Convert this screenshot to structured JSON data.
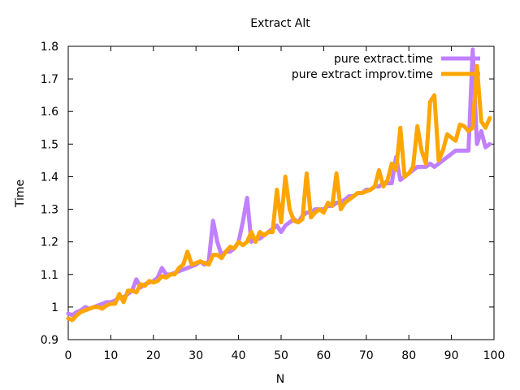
{
  "chart_data": {
    "type": "line",
    "title": "Extract Alt",
    "xlabel": "N",
    "ylabel": "Time",
    "xlim": [
      0,
      100
    ],
    "ylim": [
      0.9,
      1.8
    ],
    "xticks": [
      "0",
      "10",
      "20",
      "30",
      "40",
      "50",
      "60",
      "70",
      "80",
      "90",
      "100"
    ],
    "yticks": [
      "0.9",
      "1",
      "1.1",
      "1.2",
      "1.3",
      "1.4",
      "1.5",
      "1.6",
      "1.7",
      "1.8"
    ],
    "grid": false,
    "legend_position": "top-right",
    "series": [
      {
        "name": "pure extract.time",
        "color": "#c080ff",
        "x": [
          0,
          1,
          2,
          3,
          4,
          5,
          6,
          7,
          8,
          9,
          10,
          11,
          12,
          13,
          14,
          15,
          16,
          17,
          18,
          19,
          20,
          21,
          22,
          23,
          24,
          25,
          26,
          27,
          28,
          29,
          30,
          31,
          32,
          33,
          34,
          35,
          36,
          37,
          38,
          39,
          40,
          41,
          42,
          43,
          44,
          45,
          46,
          47,
          48,
          49,
          50,
          51,
          52,
          53,
          54,
          55,
          56,
          57,
          58,
          59,
          60,
          61,
          62,
          63,
          64,
          65,
          66,
          67,
          68,
          69,
          70,
          71,
          72,
          73,
          74,
          75,
          76,
          77,
          78,
          79,
          80,
          81,
          82,
          83,
          84,
          85,
          86,
          87,
          88,
          89,
          90,
          91,
          92,
          93,
          94,
          95,
          96,
          97,
          98,
          99
        ],
        "y": [
          0.98,
          0.975,
          0.985,
          0.99,
          1.0,
          0.995,
          1.0,
          1.005,
          1.01,
          1.015,
          1.015,
          1.02,
          1.03,
          1.03,
          1.04,
          1.05,
          1.085,
          1.06,
          1.07,
          1.075,
          1.08,
          1.09,
          1.12,
          1.1,
          1.1,
          1.105,
          1.11,
          1.115,
          1.12,
          1.125,
          1.13,
          1.14,
          1.13,
          1.14,
          1.265,
          1.2,
          1.16,
          1.17,
          1.17,
          1.18,
          1.2,
          1.26,
          1.335,
          1.2,
          1.21,
          1.21,
          1.22,
          1.23,
          1.24,
          1.25,
          1.23,
          1.25,
          1.26,
          1.27,
          1.26,
          1.28,
          1.29,
          1.29,
          1.3,
          1.3,
          1.3,
          1.31,
          1.31,
          1.32,
          1.32,
          1.33,
          1.34,
          1.34,
          1.35,
          1.35,
          1.36,
          1.36,
          1.37,
          1.37,
          1.38,
          1.38,
          1.38,
          1.46,
          1.39,
          1.4,
          1.41,
          1.42,
          1.43,
          1.43,
          1.43,
          1.44,
          1.43,
          1.44,
          1.45,
          1.46,
          1.47,
          1.48,
          1.48,
          1.48,
          1.48,
          1.79,
          1.5,
          1.54,
          1.49,
          1.5
        ]
      },
      {
        "name": "pure extract improv.time",
        "color": "#ffa500",
        "x": [
          0,
          1,
          2,
          3,
          4,
          5,
          6,
          7,
          8,
          9,
          10,
          11,
          12,
          13,
          14,
          15,
          16,
          17,
          18,
          19,
          20,
          21,
          22,
          23,
          24,
          25,
          26,
          27,
          28,
          29,
          30,
          31,
          32,
          33,
          34,
          35,
          36,
          37,
          38,
          39,
          40,
          41,
          42,
          43,
          44,
          45,
          46,
          47,
          48,
          49,
          50,
          51,
          52,
          53,
          54,
          55,
          56,
          57,
          58,
          59,
          60,
          61,
          62,
          63,
          64,
          65,
          66,
          67,
          68,
          69,
          70,
          71,
          72,
          73,
          74,
          75,
          76,
          77,
          78,
          79,
          80,
          81,
          82,
          83,
          84,
          85,
          86,
          87,
          88,
          89,
          90,
          91,
          92,
          93,
          94,
          95,
          96,
          97,
          98,
          99
        ],
        "y": [
          0.965,
          0.96,
          0.975,
          0.985,
          0.99,
          0.995,
          1.0,
          1.0,
          0.995,
          1.005,
          1.01,
          1.01,
          1.04,
          1.015,
          1.05,
          1.05,
          1.045,
          1.07,
          1.065,
          1.08,
          1.075,
          1.08,
          1.095,
          1.09,
          1.1,
          1.1,
          1.12,
          1.13,
          1.17,
          1.13,
          1.135,
          1.14,
          1.135,
          1.13,
          1.16,
          1.16,
          1.15,
          1.17,
          1.185,
          1.18,
          1.2,
          1.19,
          1.2,
          1.23,
          1.2,
          1.23,
          1.22,
          1.23,
          1.23,
          1.36,
          1.26,
          1.4,
          1.3,
          1.265,
          1.26,
          1.27,
          1.41,
          1.275,
          1.29,
          1.3,
          1.29,
          1.32,
          1.31,
          1.41,
          1.3,
          1.32,
          1.33,
          1.34,
          1.35,
          1.35,
          1.355,
          1.36,
          1.37,
          1.42,
          1.37,
          1.39,
          1.44,
          1.42,
          1.55,
          1.4,
          1.41,
          1.43,
          1.555,
          1.48,
          1.44,
          1.63,
          1.65,
          1.45,
          1.48,
          1.53,
          1.52,
          1.51,
          1.56,
          1.555,
          1.54,
          1.55,
          1.74,
          1.57,
          1.55,
          1.58
        ]
      }
    ]
  }
}
